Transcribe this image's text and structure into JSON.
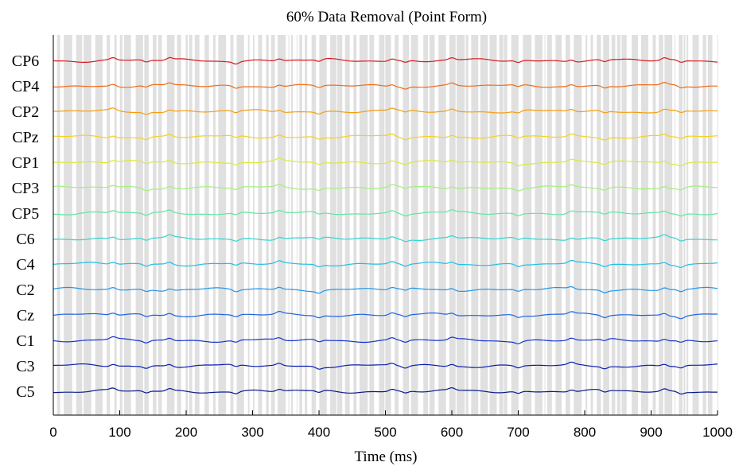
{
  "chart_data": {
    "type": "line",
    "title": "60% Data Removal (Point Form)",
    "xlabel": "Time (ms)",
    "ylabel": "",
    "xlim": [
      0,
      1000
    ],
    "x_ticks": [
      "0",
      "100",
      "200",
      "300",
      "400",
      "500",
      "600",
      "700",
      "800",
      "900",
      "1000"
    ],
    "grid": false,
    "removed_mask_color": "#e0e0e0",
    "removed_fraction": 0.6,
    "channels": [
      {
        "name": "CP6",
        "color": "#d7191c"
      },
      {
        "name": "CP4",
        "color": "#f06a14"
      },
      {
        "name": "CP2",
        "color": "#f59d0a"
      },
      {
        "name": "CPz",
        "color": "#f3d21a"
      },
      {
        "name": "CP1",
        "color": "#dbe83a"
      },
      {
        "name": "CP3",
        "color": "#9ff07a"
      },
      {
        "name": "CP5",
        "color": "#5ee6a0"
      },
      {
        "name": "C6",
        "color": "#2fd6d0"
      },
      {
        "name": "C4",
        "color": "#1cbfe6"
      },
      {
        "name": "C2",
        "color": "#1f95ea"
      },
      {
        "name": "Cz",
        "color": "#1a63e0"
      },
      {
        "name": "C1",
        "color": "#1334cc"
      },
      {
        "name": "C3",
        "color": "#0a1fb0"
      },
      {
        "name": "C5",
        "color": "#061a8c"
      }
    ]
  }
}
